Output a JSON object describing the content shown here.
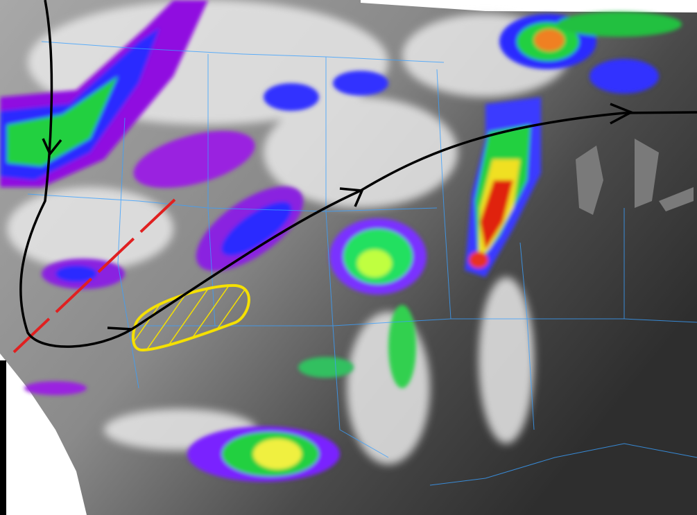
{
  "map": {
    "type": "infrared satellite image with hand-drawn annotations",
    "colors": {
      "jet_stream": "#000000",
      "trough_line": "#e02020",
      "hatched_area": "#f5e000",
      "borders": "#3aa0ff",
      "cloud_cold": "#ff0000",
      "cloud_mid": "#ffff00",
      "cloud_green": "#00ff40",
      "cloud_blue": "#2020ff",
      "cloud_purple": "#b000ff"
    },
    "annotations": [
      "jet-stream-arrow",
      "trough-dashed-line",
      "hatched-oval"
    ]
  }
}
